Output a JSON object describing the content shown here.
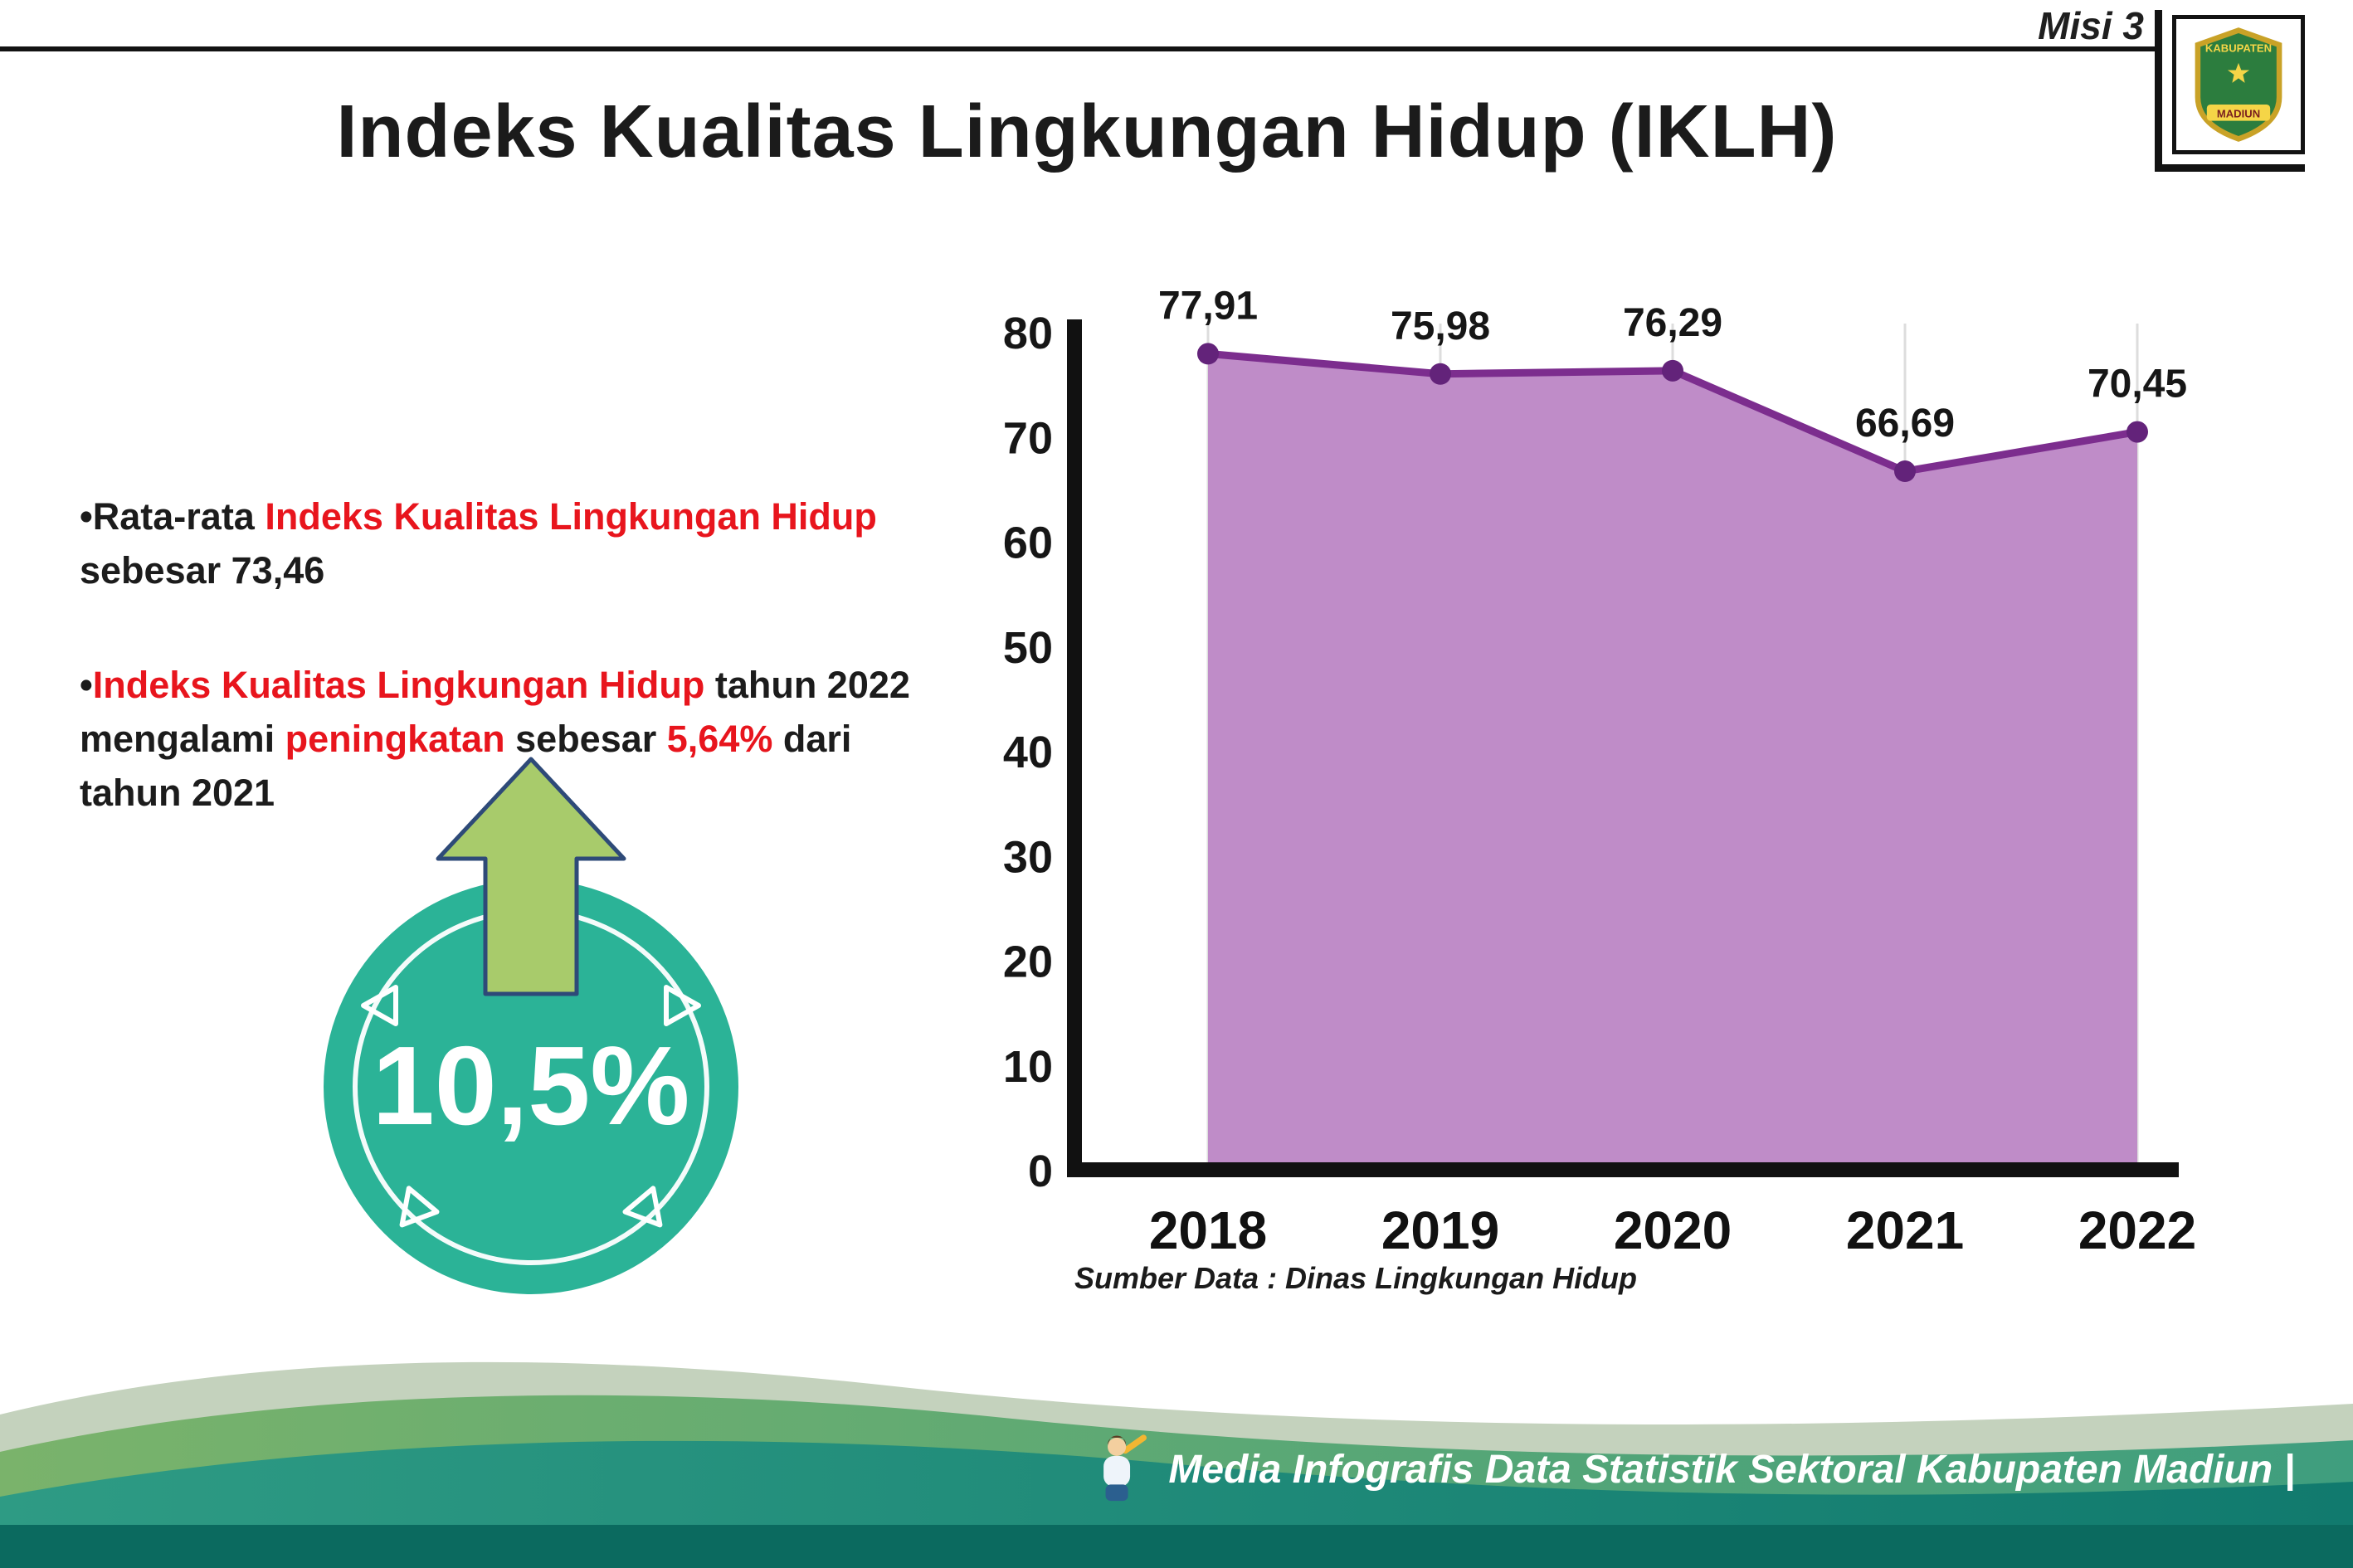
{
  "header": {
    "misi": "Misi 3",
    "title": "Indeks Kualitas Lingkungan Hidup (IKLH)"
  },
  "logo": {
    "name": "Kabupaten Madiun seal",
    "text_top": "KABUPATEN",
    "text_bottom": "MADIUN"
  },
  "colors": {
    "accent_red": "#e8151d",
    "text_black": "#1c1c1c"
  },
  "bullets": [
    {
      "segments": [
        {
          "text": "•Rata-rata ",
          "color": "#1c1c1c"
        },
        {
          "text": "Indeks Kualitas Lingkungan Hidup",
          "color": "#e8151d"
        },
        {
          "text": "\nsebesar 73,46",
          "color": "#1c1c1c"
        }
      ]
    },
    {
      "segments": [
        {
          "text": "•",
          "color": "#1c1c1c"
        },
        {
          "text": "Indeks Kualitas Lingkungan Hidup",
          "color": "#e8151d"
        },
        {
          "text": " tahun 2022\nmengalami ",
          "color": "#1c1c1c"
        },
        {
          "text": "peningkatan",
          "color": "#e8151d"
        },
        {
          "text": " sebesar ",
          "color": "#1c1c1c"
        },
        {
          "text": "5,64%",
          "color": "#e8151d"
        },
        {
          "text": " dari\ntahun 2021",
          "color": "#1c1c1c"
        }
      ]
    }
  ],
  "badge": {
    "value": "10,5%",
    "circle_color": "#2bb397",
    "arrow_color": "#a8cb6b"
  },
  "chart_data": {
    "type": "area",
    "title": "",
    "xlabel": "",
    "ylabel": "",
    "categories": [
      "2018",
      "2019",
      "2020",
      "2021",
      "2022"
    ],
    "values": [
      77.91,
      75.98,
      76.29,
      66.69,
      70.45
    ],
    "value_labels": [
      "77,91",
      "75,98",
      "76,29",
      "66,69",
      "70,45"
    ],
    "ylim": [
      0,
      80
    ],
    "yticks": [
      0,
      10,
      20,
      30,
      40,
      50,
      60,
      70,
      80
    ],
    "grid": "vertical-light",
    "legend": "none",
    "colors": {
      "fill": "#bf8cc8",
      "line": "#7c2d8e",
      "point": "#63237a",
      "axis": "#111111",
      "gridline": "#dddddd"
    }
  },
  "source_note": "Sumber Data : Dinas Lingkungan Hidup",
  "footer": {
    "text": "Media Infografis Data Statistik Sektoral Kabupaten Madiun |"
  }
}
